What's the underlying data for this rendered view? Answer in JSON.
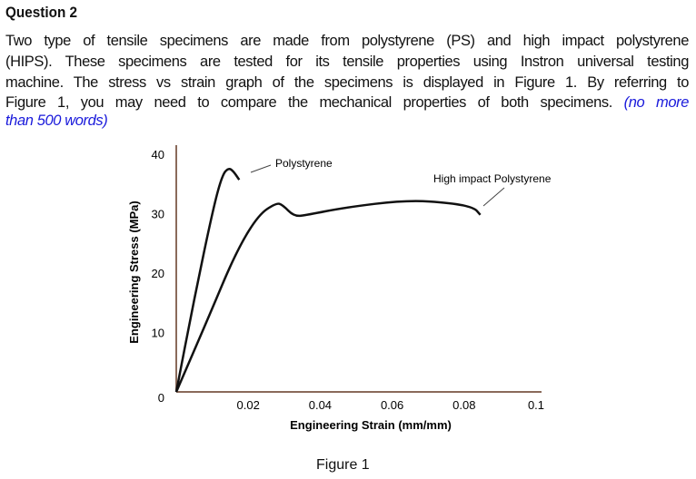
{
  "question": {
    "title": "Question 2",
    "lines": [
      "Two type of tensile specimens are made from polystyrene (PS) and high impact polystyrene",
      "(HIPS). These specimens are tested for its tensile properties using Instron universal testing",
      "machine. The stress vs strain graph of the specimens is displayed in Figure 1. By referring to",
      "Figure 1, you may need to compare the mechanical properties of both specimens."
    ],
    "note_part1": "(no more",
    "note_part2": "than 500 words)",
    "note_color": "#1a1adb"
  },
  "figure_caption": "Figure 1",
  "chart_data": {
    "type": "line",
    "title": "",
    "xlabel": "Engineering Strain (mm/mm)",
    "ylabel": "Engineering Stress (MPa)",
    "xlim": [
      0,
      0.1
    ],
    "ylim": [
      0,
      40
    ],
    "x_ticks": [
      "0.02",
      "0.04",
      "0.06",
      "0.08",
      "0.1"
    ],
    "x_tick_values": [
      0.02,
      0.04,
      0.06,
      0.08,
      0.1
    ],
    "y_ticks": [
      "0",
      "10",
      "20",
      "30",
      "40"
    ],
    "y_tick_values": [
      0,
      10,
      20,
      30,
      40
    ],
    "grid": false,
    "axis_color": "#8a6a5a",
    "line_color": "#111111",
    "series": [
      {
        "name": "Polystyrene",
        "x": [
          0,
          0.005,
          0.0103,
          0.0128,
          0.0145,
          0.0158,
          0.0175
        ],
        "y": [
          0,
          15.7,
          31,
          36.5,
          37.7,
          37.2,
          35.7
        ]
      },
      {
        "name": "High impact Polystyrene",
        "x": [
          0,
          0.009,
          0.0165,
          0.0228,
          0.0278,
          0.0295,
          0.0328,
          0.0365,
          0.0465,
          0.064,
          0.0765,
          0.0828,
          0.0845
        ],
        "y": [
          0,
          12.6,
          23.4,
          29.8,
          31.8,
          31.5,
          29.5,
          29.8,
          31,
          32.3,
          31.8,
          31,
          29.8
        ]
      }
    ]
  }
}
